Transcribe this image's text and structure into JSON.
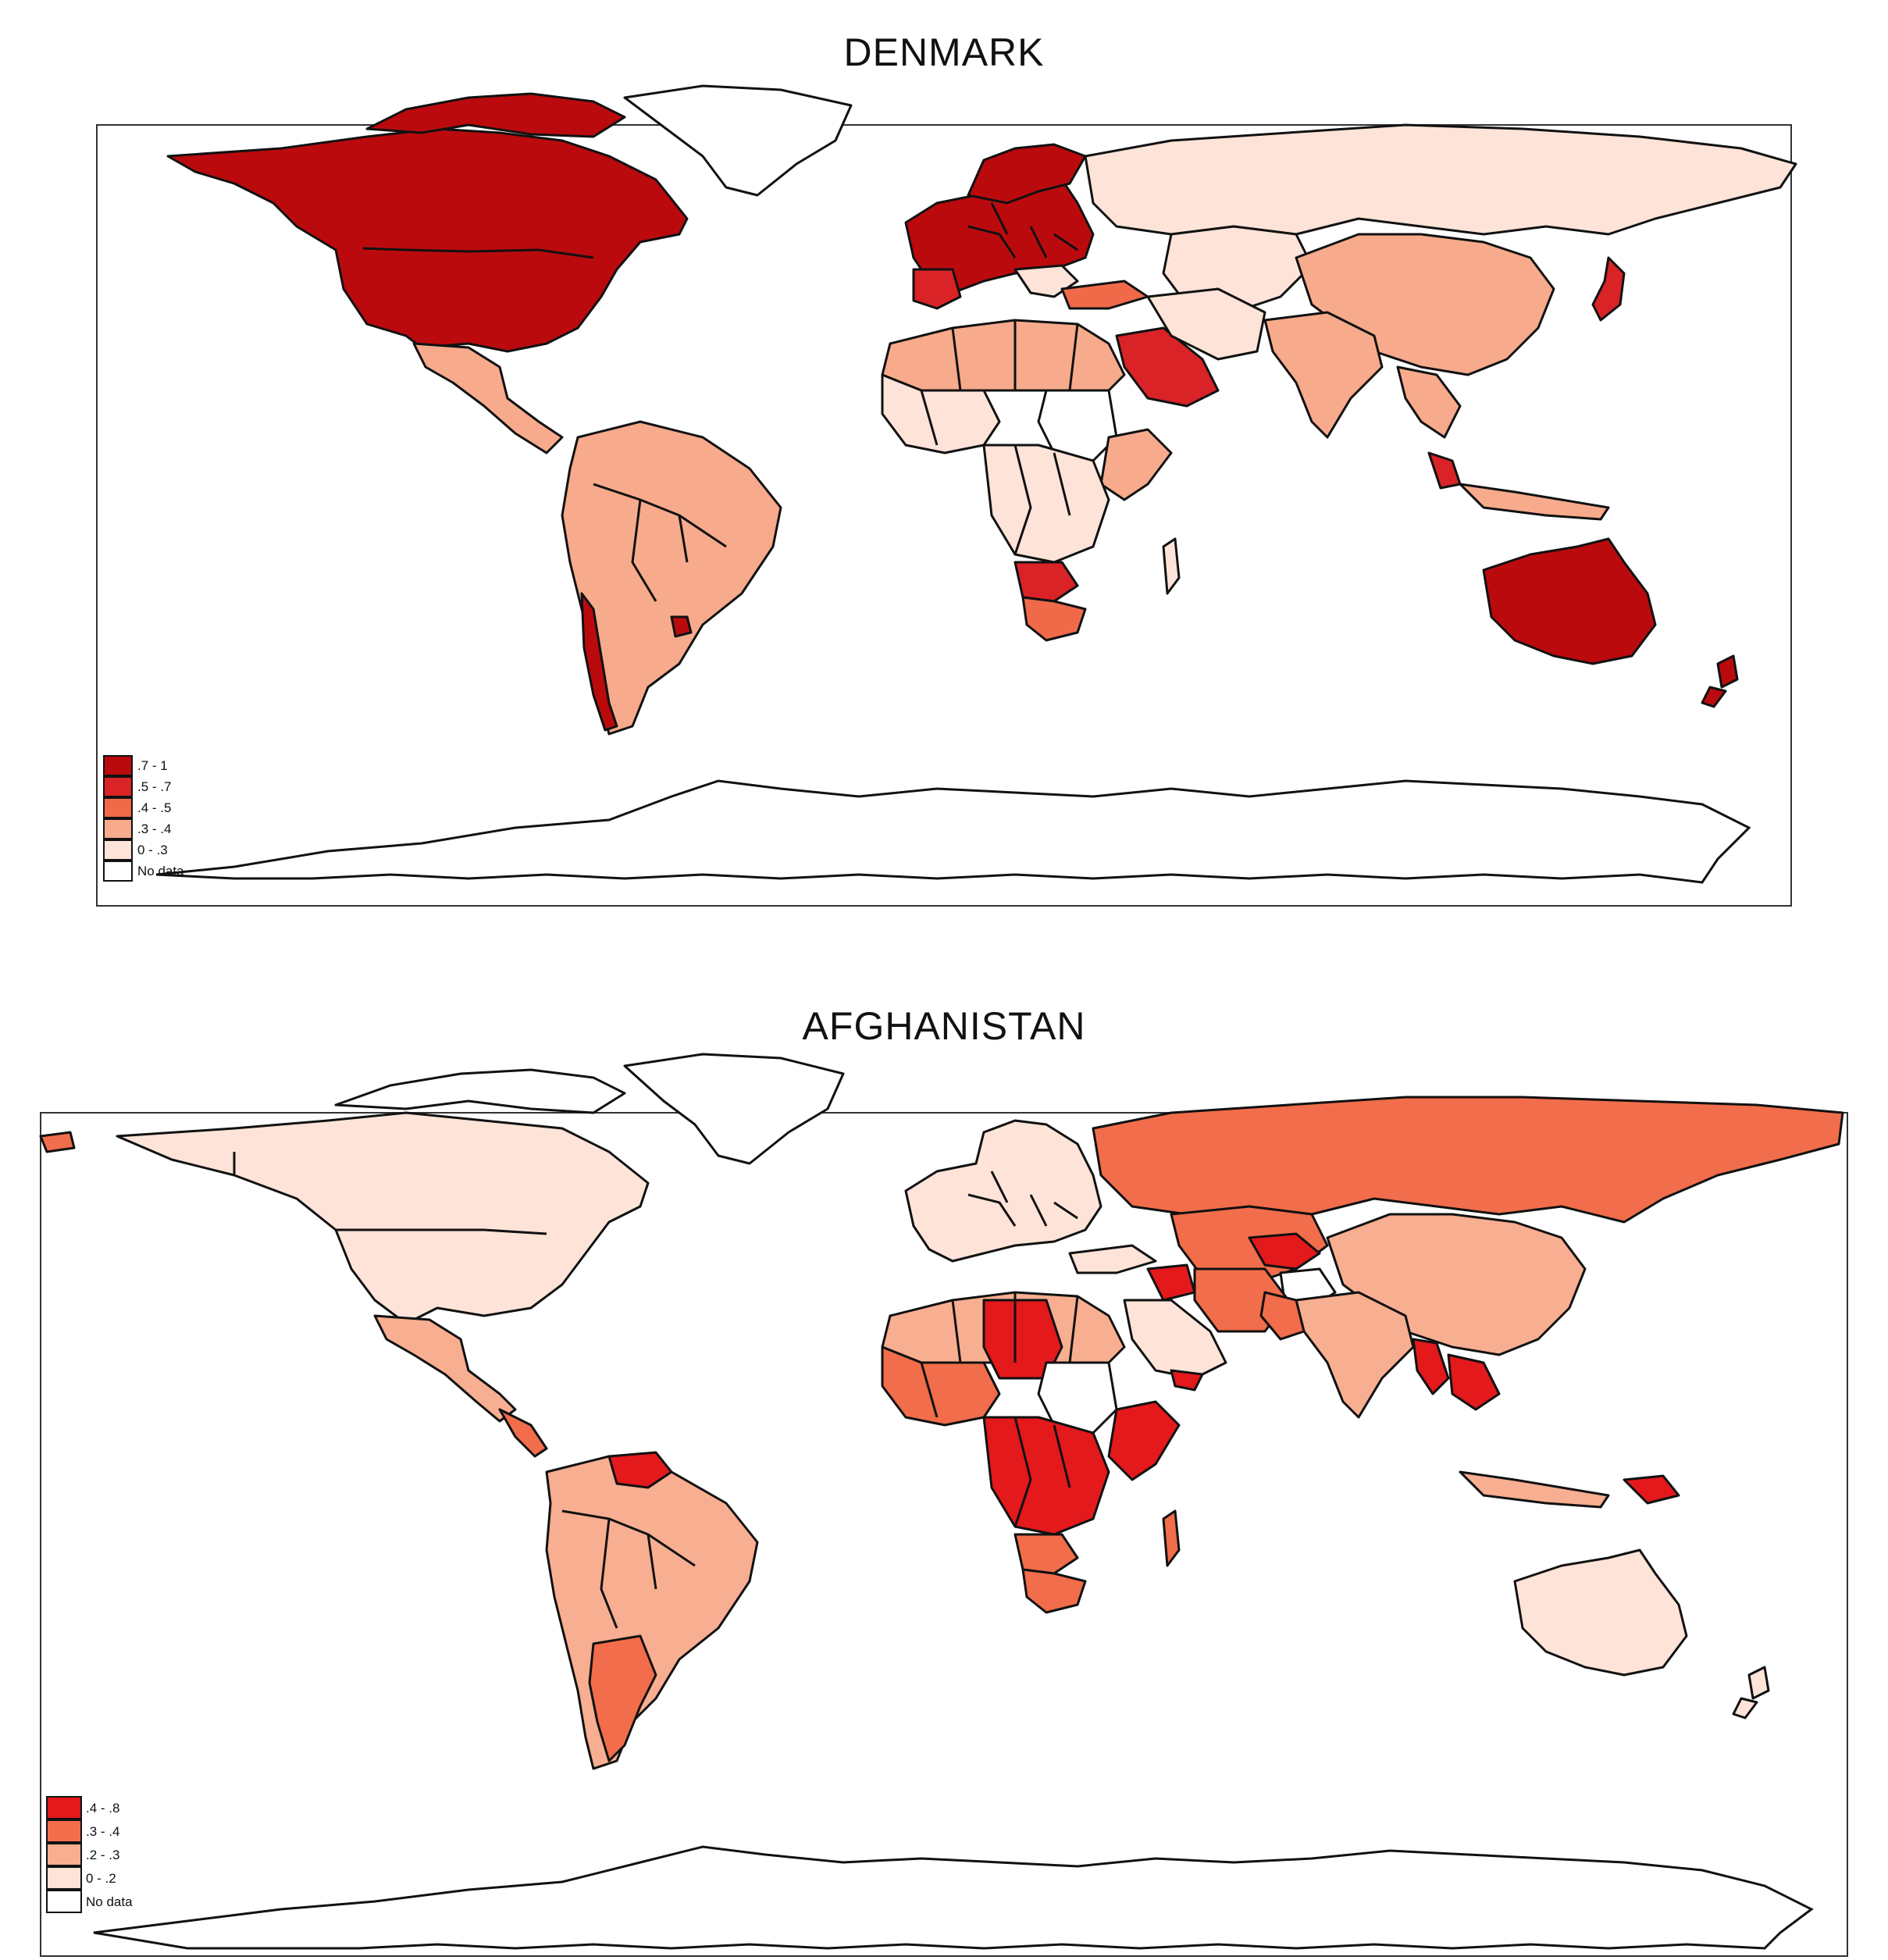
{
  "maps": [
    {
      "title": "DENMARK",
      "legend": [
        {
          "label": ".7 - 1",
          "color": "#bb0a0e"
        },
        {
          "label": ".5 - .7",
          "color": "#d92327"
        },
        {
          "label": ".4 - .5",
          "color": "#f06a4a"
        },
        {
          "label": ".3 - .4",
          "color": "#f7aa8c"
        },
        {
          "label": "0 - .3",
          "color": "#fde3d8"
        },
        {
          "label": "No data",
          "color": "#ffffff"
        }
      ]
    },
    {
      "title": "AFGHANISTAN",
      "legend": [
        {
          "label": ".4 - .8",
          "color": "#e3191c"
        },
        {
          "label": ".3 - .4",
          "color": "#f26d4b"
        },
        {
          "label": ".2 - .3",
          "color": "#f8ae91"
        },
        {
          "label": "0 - .2",
          "color": "#fde3d8"
        },
        {
          "label": "No data",
          "color": "#ffffff"
        }
      ]
    }
  ]
}
